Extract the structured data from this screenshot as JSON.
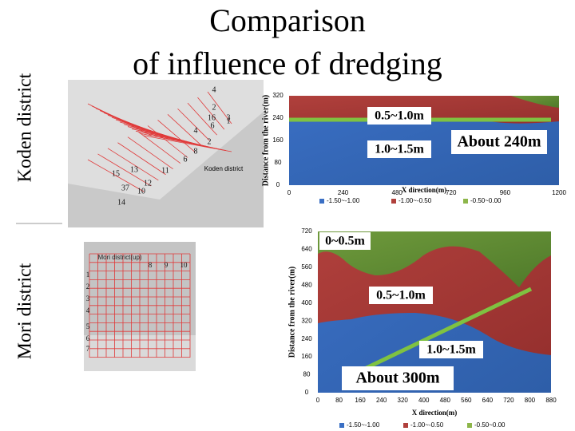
{
  "title": {
    "lines": [
      "Comparison",
      "of influence of dredging"
    ]
  },
  "side_labels": [
    "Koden district",
    "Mori district"
  ],
  "koden": {
    "map_label": "Koden district",
    "map_numbers": [
      "4",
      "2",
      "16",
      "6",
      "1",
      "3",
      "4",
      "2",
      "8",
      "6",
      "15",
      "13",
      "37",
      "12",
      "10",
      "14",
      "11"
    ],
    "chart": {
      "y_axis_label": "Distance from the river(m)",
      "x_axis_label": "X direction(m)",
      "y_ticks": [
        "320",
        "240",
        "160",
        "80",
        "0"
      ],
      "x_ticks": [
        "0",
        "240",
        "480",
        "720",
        "960",
        "1200"
      ],
      "legend": [
        "-1.50~-1.00",
        "-1.00~-0.50",
        "-0.50~0.00"
      ],
      "annotations": [
        "0.5~1.0m",
        "1.0~1.5m",
        "About 240m"
      ]
    }
  },
  "mori": {
    "map_label": "Mori district(up)",
    "map_numbers": [
      "1",
      "2",
      "3",
      "4",
      "5",
      "6",
      "7",
      "8",
      "9",
      "10"
    ],
    "chart": {
      "y_axis_label": "Distance from the river(m)",
      "x_axis_label": "X direction(m)",
      "y_ticks": [
        "720",
        "640",
        "560",
        "480",
        "400",
        "320",
        "240",
        "160",
        "80",
        "0"
      ],
      "x_ticks": [
        "0",
        "80",
        "160",
        "240",
        "320",
        "400",
        "480",
        "560",
        "640",
        "720",
        "800",
        "880"
      ],
      "legend": [
        "-1.50~-1.00",
        "-1.00~-0.50",
        "-0.50~0.00"
      ],
      "annotations": [
        "0~0.5m",
        "0.5~1.0m",
        "1.0~1.5m",
        "About 300m"
      ]
    }
  }
}
